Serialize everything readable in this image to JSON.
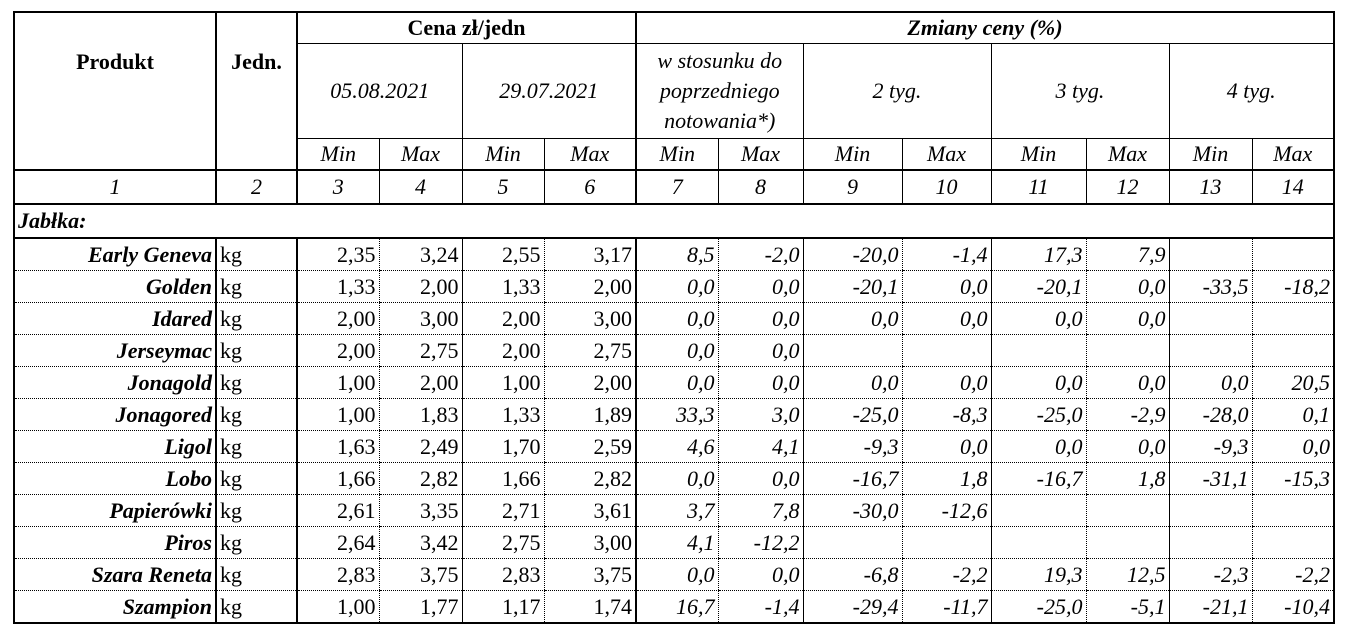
{
  "header": {
    "product": "Produkt",
    "unit": "Jedn.",
    "price_group": "Cena zł/jedn",
    "change_group": "Zmiany ceny (%)",
    "date1": "05.08.2021",
    "date2": "29.07.2021",
    "prev_label_1": "w stosunku do",
    "prev_label_2": "poprzedniego",
    "prev_label_3": "notowania*)",
    "w2": "2 tyg.",
    "w3": "3 tyg.",
    "w4": "4 tyg.",
    "min": "Min",
    "max": "Max",
    "col_numbers": [
      "1",
      "2",
      "3",
      "4",
      "5",
      "6",
      "7",
      "8",
      "9",
      "10",
      "11",
      "12",
      "13",
      "14"
    ]
  },
  "section_label": "Jabłka:",
  "rows": [
    {
      "name": "Early Geneva",
      "unit": "kg",
      "v": [
        "2,35",
        "3,24",
        "2,55",
        "3,17",
        "8,5",
        "-2,0",
        "-20,0",
        "-1,4",
        "17,3",
        "7,9",
        "",
        ""
      ]
    },
    {
      "name": "Golden",
      "unit": "kg",
      "v": [
        "1,33",
        "2,00",
        "1,33",
        "2,00",
        "0,0",
        "0,0",
        "-20,1",
        "0,0",
        "-20,1",
        "0,0",
        "-33,5",
        "-18,2"
      ]
    },
    {
      "name": "Idared",
      "unit": "kg",
      "v": [
        "2,00",
        "3,00",
        "2,00",
        "3,00",
        "0,0",
        "0,0",
        "0,0",
        "0,0",
        "0,0",
        "0,0",
        "",
        ""
      ]
    },
    {
      "name": "Jerseymac",
      "unit": "kg",
      "v": [
        "2,00",
        "2,75",
        "2,00",
        "2,75",
        "0,0",
        "0,0",
        "",
        "",
        "",
        "",
        "",
        ""
      ]
    },
    {
      "name": "Jonagold",
      "unit": "kg",
      "v": [
        "1,00",
        "2,00",
        "1,00",
        "2,00",
        "0,0",
        "0,0",
        "0,0",
        "0,0",
        "0,0",
        "0,0",
        "0,0",
        "20,5"
      ]
    },
    {
      "name": "Jonagored",
      "unit": "kg",
      "v": [
        "1,00",
        "1,83",
        "1,33",
        "1,89",
        "33,3",
        "3,0",
        "-25,0",
        "-8,3",
        "-25,0",
        "-2,9",
        "-28,0",
        "0,1"
      ]
    },
    {
      "name": "Ligol",
      "unit": "kg",
      "v": [
        "1,63",
        "2,49",
        "1,70",
        "2,59",
        "4,6",
        "4,1",
        "-9,3",
        "0,0",
        "0,0",
        "0,0",
        "-9,3",
        "0,0"
      ]
    },
    {
      "name": "Lobo",
      "unit": "kg",
      "v": [
        "1,66",
        "2,82",
        "1,66",
        "2,82",
        "0,0",
        "0,0",
        "-16,7",
        "1,8",
        "-16,7",
        "1,8",
        "-31,1",
        "-15,3"
      ]
    },
    {
      "name": "Papierówki",
      "unit": "kg",
      "v": [
        "2,61",
        "3,35",
        "2,71",
        "3,61",
        "3,7",
        "7,8",
        "-30,0",
        "-12,6",
        "",
        "",
        "",
        ""
      ]
    },
    {
      "name": "Piros",
      "unit": "kg",
      "v": [
        "2,64",
        "3,42",
        "2,75",
        "3,00",
        "4,1",
        "-12,2",
        "",
        "",
        "",
        "",
        "",
        ""
      ]
    },
    {
      "name": "Szara Reneta",
      "unit": "kg",
      "v": [
        "2,83",
        "3,75",
        "2,83",
        "3,75",
        "0,0",
        "0,0",
        "-6,8",
        "-2,2",
        "19,3",
        "12,5",
        "-2,3",
        "-2,2"
      ]
    },
    {
      "name": "Szampion",
      "unit": "kg",
      "v": [
        "1,00",
        "1,77",
        "1,17",
        "1,74",
        "16,7",
        "-1,4",
        "-29,4",
        "-11,7",
        "-25,0",
        "-5,1",
        "-21,1",
        "-10,4"
      ]
    }
  ]
}
